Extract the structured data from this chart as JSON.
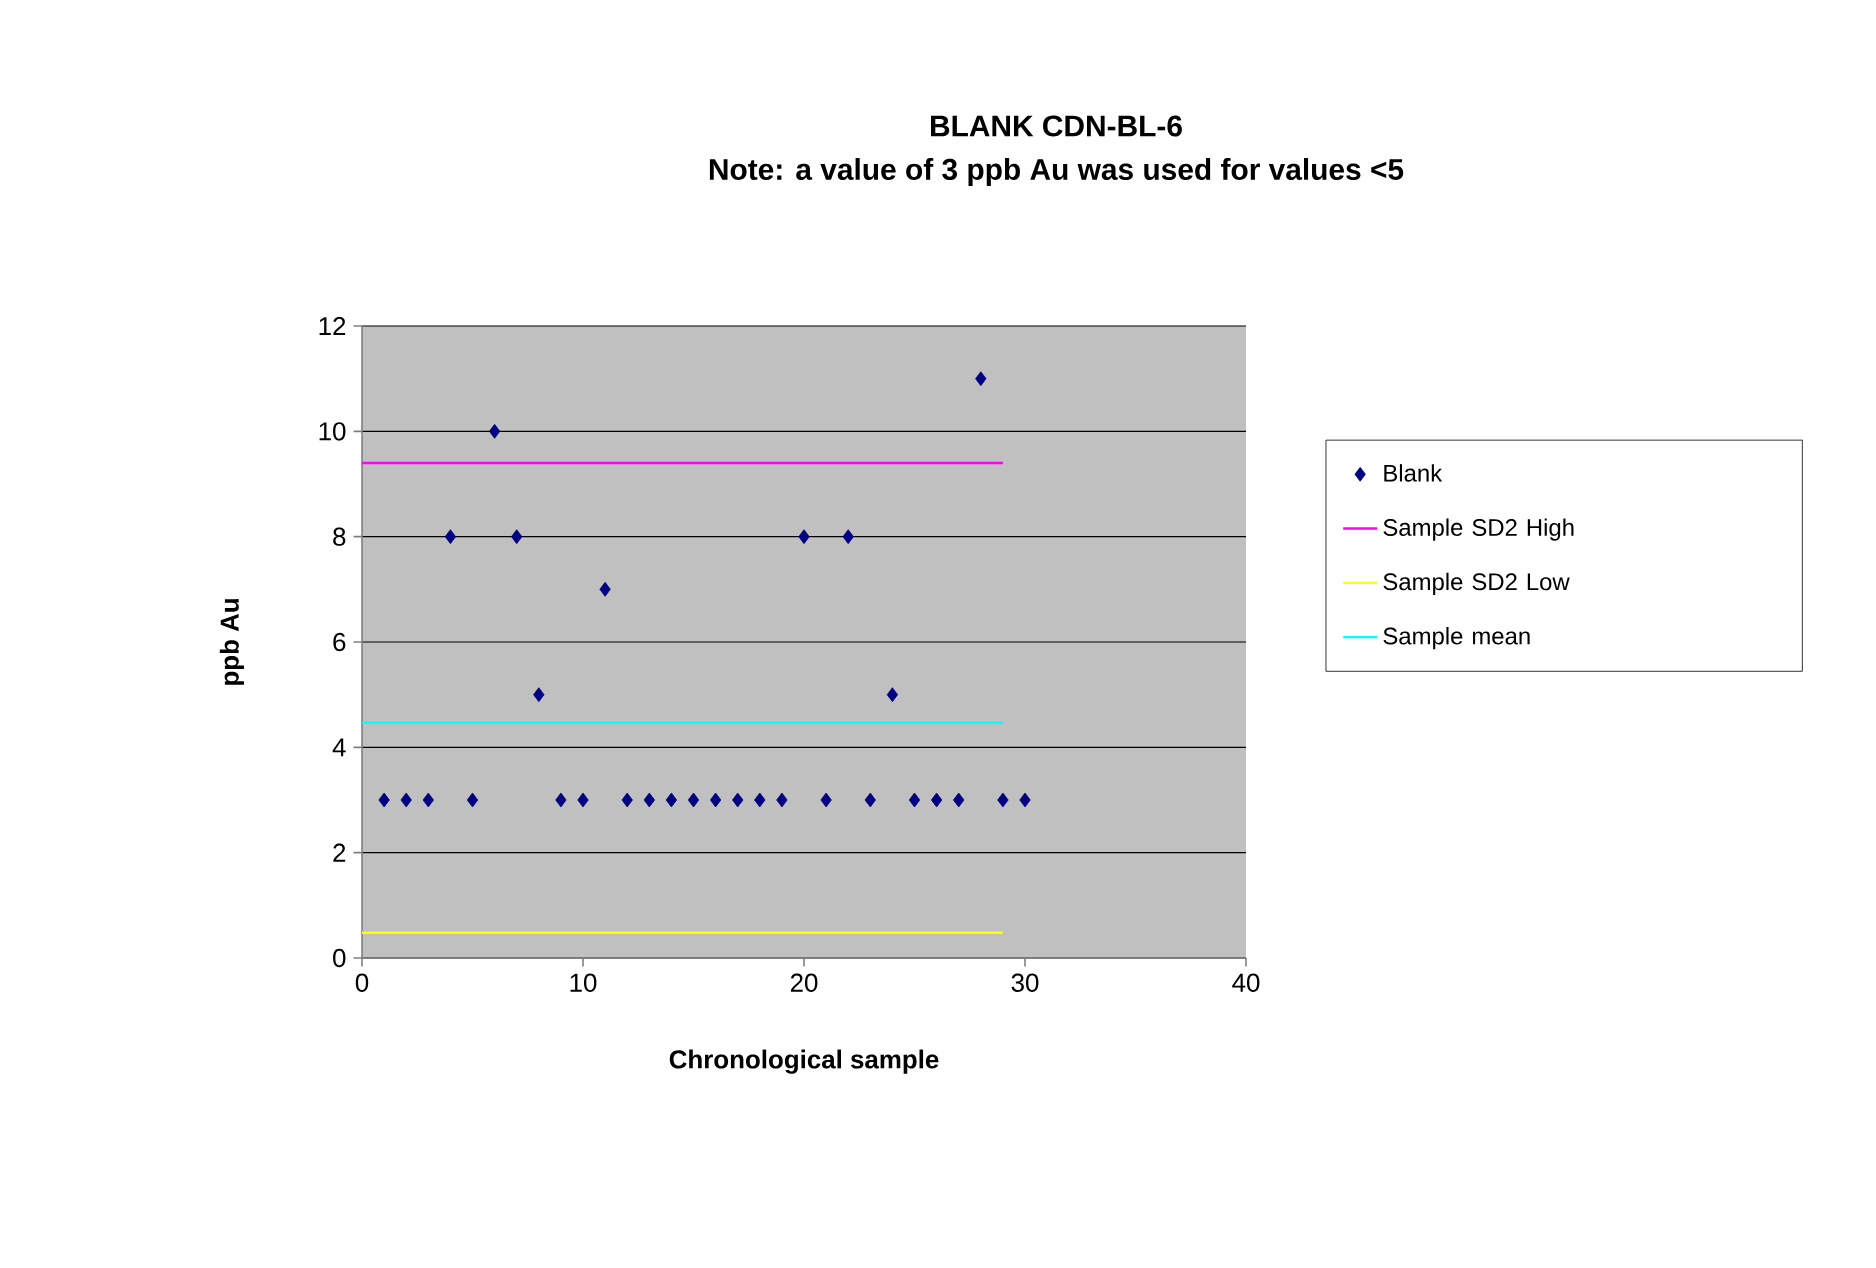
{
  "chart_data": {
    "type": "scatter",
    "title": "BLANK CDN-BL-6",
    "subtitle": "Note: a value of 3 ppb Au was used for values <5",
    "xlabel": "Chronological sample",
    "ylabel": "ppb Au",
    "xlim": [
      0,
      40
    ],
    "xticks": [
      0,
      10,
      20,
      30,
      40
    ],
    "ylim": [
      0,
      12
    ],
    "yticks": [
      0,
      2,
      4,
      6,
      8,
      10,
      12
    ],
    "grid": "y",
    "legend": "right",
    "series": [
      {
        "name": "Blank",
        "marker": "diamond",
        "color": "#000080",
        "x": [
          1,
          2,
          3,
          4,
          5,
          6,
          7,
          8,
          9,
          10,
          11,
          12,
          13,
          14,
          15,
          16,
          17,
          18,
          19,
          20,
          21,
          22,
          23,
          24,
          25,
          26,
          27,
          28,
          29,
          30
        ],
        "values": [
          3,
          3,
          3,
          8,
          3,
          10,
          8,
          5,
          3,
          3,
          7,
          3,
          3,
          3,
          3,
          3,
          3,
          3,
          3,
          8,
          3,
          8,
          3,
          5,
          3,
          3,
          3,
          11,
          3,
          3
        ]
      },
      {
        "name": "Sample SD2 High",
        "type": "line",
        "marker": "none",
        "color": "#ff00ff",
        "x": [
          0,
          29
        ],
        "values": [
          9.4,
          9.4
        ]
      },
      {
        "name": "Sample SD2 Low",
        "type": "line",
        "marker": "none",
        "color": "#ffff00",
        "x": [
          0,
          29
        ],
        "values": [
          0.48,
          0.48
        ]
      },
      {
        "name": "Sample mean",
        "type": "line",
        "marker": "none",
        "color": "#00ffff",
        "x": [
          0,
          29
        ],
        "values": [
          4.47,
          4.47
        ]
      }
    ]
  }
}
